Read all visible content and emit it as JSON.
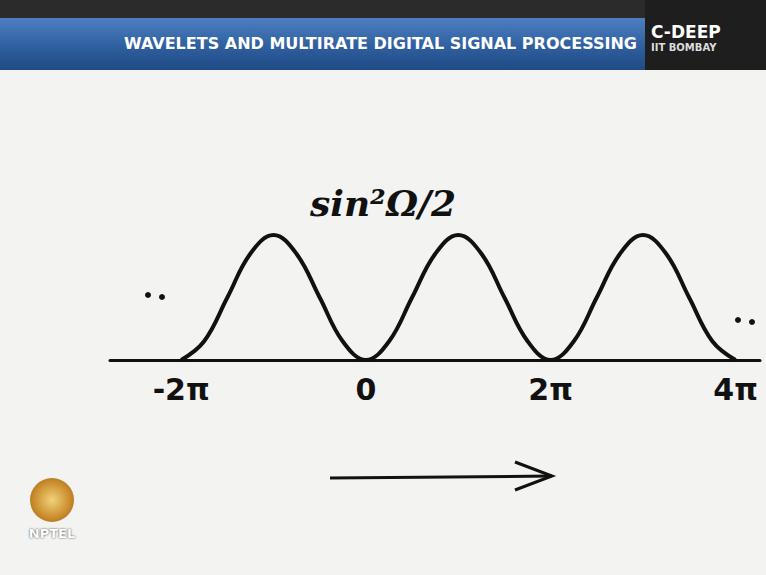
{
  "chart_data": {
    "type": "line",
    "title": "sin²Ω/2",
    "x": [
      -6.28,
      -5.5,
      -4.71,
      -3.93,
      -3.14,
      -2.36,
      -1.57,
      -0.79,
      0,
      0.79,
      1.57,
      2.36,
      3.14,
      3.93,
      4.71,
      5.5,
      6.28,
      7.07,
      7.85,
      8.64,
      9.42,
      10.21,
      10.99,
      11.78,
      12.57
    ],
    "values": [
      0,
      0.15,
      0.5,
      0.85,
      1,
      0.85,
      0.5,
      0.15,
      0,
      0.15,
      0.5,
      0.85,
      1,
      0.85,
      0.5,
      0.15,
      0,
      0.15,
      0.5,
      0.85,
      1,
      0.85,
      0.5,
      0.15,
      0
    ],
    "color": "#111111",
    "xlim": [
      -8.7,
      13.4
    ],
    "xticks": [
      {
        "value": -6.28,
        "label": "-2π"
      },
      0,
      {
        "value": 6.28,
        "label": "2π"
      },
      {
        "value": 12.57,
        "label": "4π"
      }
    ],
    "ylim": [
      0,
      1
    ],
    "tick_labels": "x",
    "grid": false
  },
  "header": {
    "title": "WAVELETS AND MULTIRATE DIGITAL SIGNAL PROCESSING",
    "badge": [
      "C-DEEP",
      "IIT BOMBAY"
    ]
  },
  "logo": "NPTEL"
}
